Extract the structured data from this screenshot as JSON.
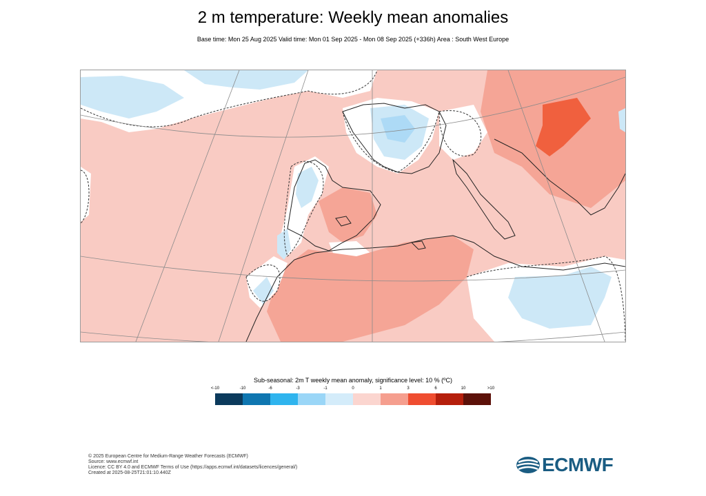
{
  "header": {
    "title": "2 m temperature: Weekly mean anomalies",
    "subtitle": "Base time: Mon 25 Aug 2025 Valid time: Mon 01 Sep 2025 - Mon 08 Sep 2025 (+336h) Area : South West Europe"
  },
  "map": {
    "region": "South West Europe",
    "colors": {
      "warm_1": "#f9cbc3",
      "warm_3": "#f5a596",
      "warm_6": "#f0603e",
      "cool_1": "#cde8f7",
      "cool_3": "#9fd4f5",
      "land_water_line": "#222222",
      "graticule": "#8a8a8a"
    }
  },
  "legend": {
    "title": "Sub-seasonal: 2m T weekly mean anomaly, significance level: 10 % (ºC)",
    "ticks": [
      "<-10",
      "-10",
      "-6",
      "-3",
      "-1",
      "0",
      "1",
      "3",
      "6",
      "10",
      ">10"
    ],
    "colors": [
      "#0b3a5c",
      "#0f76b0",
      "#2fb4ee",
      "#9ad6f7",
      "#d4ecfa",
      "#fbd5cf",
      "#f59e8e",
      "#ef4d30",
      "#b51f0c",
      "#5c1109"
    ]
  },
  "footer": {
    "lines": [
      "© 2025 European Centre for Medium-Range Weather Forecasts (ECMWF)",
      "Source: www.ecmwf.int",
      "Licence: CC BY 4.0 and ECMWF Terms of Use (https://apps.ecmwf.int/datasets/licences/general/)",
      "Created at 2025-08-25T21:01:10.440Z"
    ]
  },
  "logo": {
    "text": "ECMWF",
    "color": "#1a5c82"
  }
}
